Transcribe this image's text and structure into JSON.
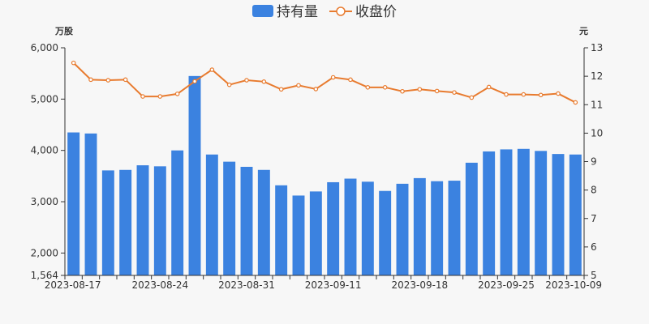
{
  "chart_data": {
    "type": "bar+line",
    "legend": {
      "placement": "top-center",
      "items": [
        {
          "name": "持有量",
          "type": "bar",
          "color": "#3b82e0"
        },
        {
          "name": "收盘价",
          "type": "line",
          "color": "#e87b2f"
        }
      ]
    },
    "y_left": {
      "unit": "万股",
      "min": 1564,
      "max": 6000,
      "ticks": [
        "1,564",
        "2,000",
        "3,000",
        "4,000",
        "5,000",
        "6,000"
      ],
      "tick_values": [
        1564,
        2000,
        3000,
        4000,
        5000,
        6000
      ]
    },
    "y_right": {
      "unit": "元",
      "min": 5,
      "max": 13,
      "ticks": [
        "5",
        "6",
        "7",
        "8",
        "9",
        "10",
        "11",
        "12",
        "13"
      ]
    },
    "x_tick_labels": [
      "2023-08-17",
      "2023-08-24",
      "2023-08-31",
      "2023-09-11",
      "2023-09-18",
      "2023-09-25",
      "2023-10-09"
    ],
    "x_tick_indices": [
      0,
      5,
      10,
      15,
      20,
      25,
      29
    ],
    "bars": {
      "name": "持有量",
      "values": [
        4350,
        4330,
        3610,
        3620,
        3710,
        3690,
        4000,
        5450,
        3920,
        3780,
        3680,
        3620,
        3320,
        3120,
        3200,
        3380,
        3450,
        3390,
        3210,
        3350,
        3460,
        3400,
        3410,
        3760,
        3980,
        4020,
        4030,
        3990,
        3930,
        3920
      ]
    },
    "line": {
      "name": "收盘价",
      "values": [
        12.47,
        11.88,
        11.86,
        11.88,
        11.29,
        11.29,
        11.38,
        11.82,
        12.23,
        11.7,
        11.86,
        11.81,
        11.54,
        11.68,
        11.55,
        11.96,
        11.88,
        11.61,
        11.61,
        11.47,
        11.54,
        11.48,
        11.43,
        11.25,
        11.62,
        11.36,
        11.36,
        11.34,
        11.39,
        11.08
      ]
    }
  }
}
